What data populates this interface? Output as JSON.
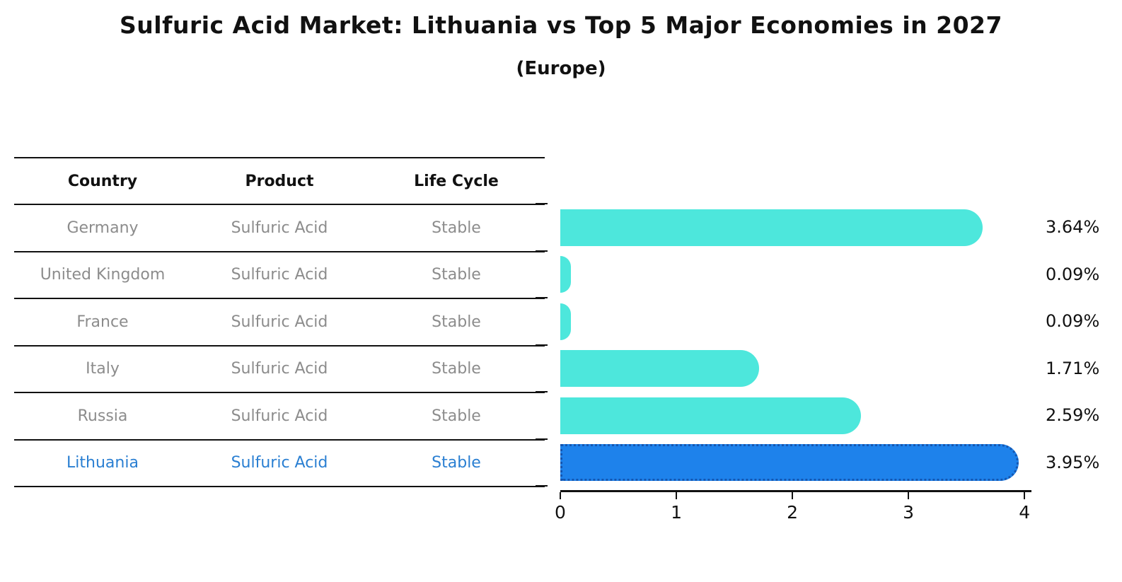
{
  "chart_data": {
    "type": "bar",
    "orientation": "horizontal",
    "title": "Sulfuric Acid Market: Lithuania vs Top 5 Major Economies in 2027",
    "subtitle": "(Europe)",
    "categories": [
      "Germany",
      "United Kingdom",
      "France",
      "Italy",
      "Russia",
      "Lithuania"
    ],
    "values": [
      3.64,
      0.09,
      0.09,
      1.71,
      2.59,
      3.95
    ],
    "value_labels": [
      "3.64%",
      "0.09%",
      "0.09%",
      "1.71%",
      "2.59%",
      "3.95%"
    ],
    "highlight_index": 5,
    "xlabel": "",
    "ylabel": "",
    "xlim": [
      0,
      4.06
    ],
    "x_ticks": [
      0,
      1,
      2,
      3,
      4
    ],
    "grid": false,
    "legend": "none",
    "bar_color": "#4de7dc",
    "highlight_bar_color": "#1e82eb",
    "highlight_border_color": "#1556b0"
  },
  "table": {
    "headers": [
      "Country",
      "Product",
      "Life Cycle"
    ],
    "rows": [
      {
        "country": "Germany",
        "product": "Sulfuric Acid",
        "life_cycle": "Stable"
      },
      {
        "country": "United Kingdom",
        "product": "Sulfuric Acid",
        "life_cycle": "Stable"
      },
      {
        "country": "France",
        "product": "Sulfuric Acid",
        "life_cycle": "Stable"
      },
      {
        "country": "Italy",
        "product": "Sulfuric Acid",
        "life_cycle": "Stable"
      },
      {
        "country": "Russia",
        "product": "Sulfuric Acid",
        "life_cycle": "Stable"
      },
      {
        "country": "Lithuania",
        "product": "Sulfuric Acid",
        "life_cycle": "Stable",
        "highlighted": true
      }
    ],
    "text_color": "#8c8c8c",
    "highlight_text_color": "#2a7fd2"
  }
}
